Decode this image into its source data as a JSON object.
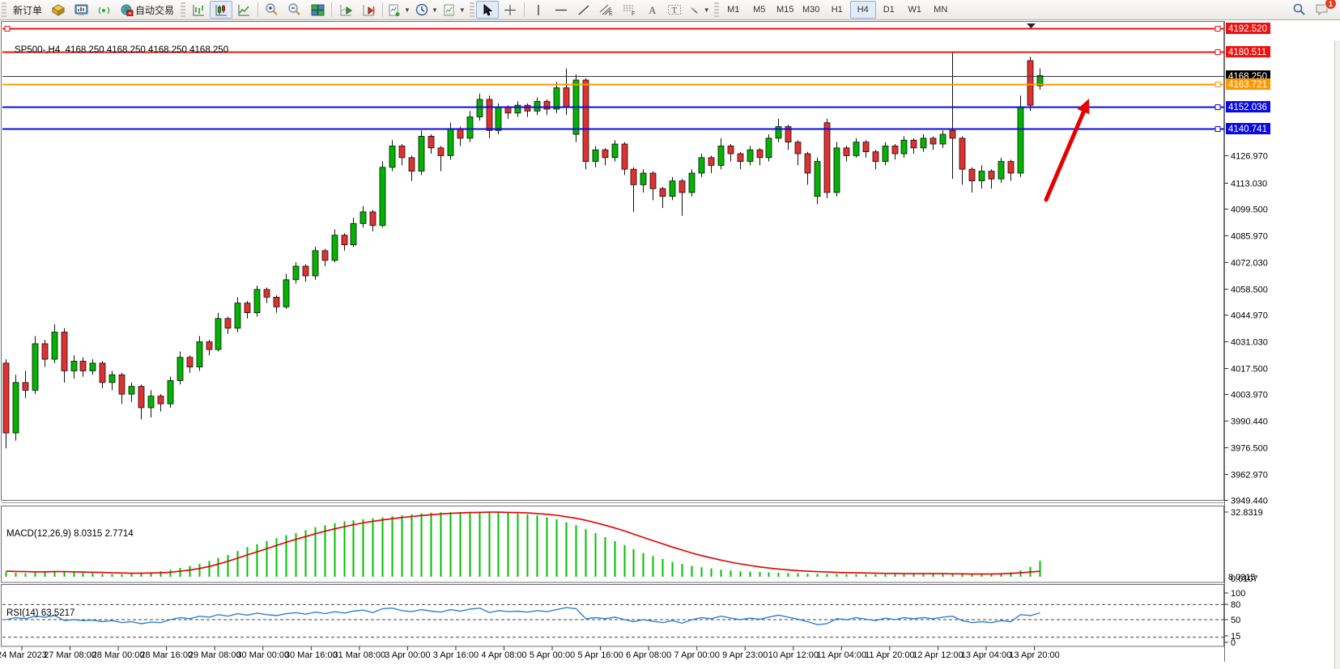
{
  "toolbar": {
    "new_order_label": "新订单",
    "auto_trading_label": "自动交易",
    "timeframes": [
      "M1",
      "M5",
      "M15",
      "M30",
      "H1",
      "H4",
      "D1",
      "W1",
      "MN"
    ],
    "active_timeframe": "H4",
    "notification_badge": "1",
    "icon_names": [
      "new-order",
      "package",
      "market-watch",
      "signal",
      "auto-trading",
      "bar-chart",
      "candlestick-chart",
      "line-chart",
      "zoom-in",
      "zoom-out",
      "tile-windows",
      "auto-scroll",
      "chart-shift",
      "indicators",
      "timeframes-clock",
      "templates",
      "cursor",
      "crosshair",
      "vertical-line",
      "horizontal-line",
      "trendline",
      "equidistant-channel",
      "fibonacci",
      "text",
      "text-label",
      "arrows",
      "search",
      "chat"
    ]
  },
  "chart": {
    "title": "SP500-,H4",
    "ohlc_text": "4168.250 4168.250 4168.250 4168.250",
    "price_axis": {
      "ticks": [
        "4126.970",
        "4113.030",
        "4099.500",
        "4085.970",
        "4072.030",
        "4058.500",
        "4044.970",
        "4031.030",
        "4017.500",
        "4003.970",
        "3990.440",
        "3976.500",
        "3962.970",
        "3949.440"
      ],
      "top_price": 4195.6,
      "bottom_price": 3949.44
    },
    "levels": [
      {
        "price": 4192.52,
        "label": "4192.520",
        "color": "#ee1111",
        "kind": "resistance-line"
      },
      {
        "price": 4180.511,
        "label": "4180.511",
        "color": "#ee1111",
        "kind": "resistance-line"
      },
      {
        "price": 4168.25,
        "label": "4168.250",
        "color": "#000000",
        "kind": "current-price"
      },
      {
        "price": 4163.721,
        "label": "4163.721",
        "color": "#ff9800",
        "kind": "pivot-line"
      },
      {
        "price": 4152.036,
        "label": "4152.036",
        "color": "#0b0bdf",
        "kind": "support-line"
      },
      {
        "price": 4140.741,
        "label": "4140.741",
        "color": "#0b0bdf",
        "kind": "support-line"
      }
    ],
    "time_axis": [
      "24 Mar 2023",
      "27 Mar 08:00",
      "28 Mar 00:00",
      "28 Mar 16:00",
      "29 Mar 08:00",
      "30 Mar 00:00",
      "30 Mar 16:00",
      "31 Mar 08:00",
      "3 Apr 00:00",
      "3 Apr 16:00",
      "4 Apr 08:00",
      "5 Apr 00:00",
      "5 Apr 16:00",
      "6 Apr 08:00",
      "7 Apr 00:00",
      "9 Apr 23:00",
      "10 Apr 12:00",
      "11 Apr 04:00",
      "11 Apr 20:00",
      "12 Apr 12:00",
      "13 Apr 04:00",
      "13 Apr 20:00"
    ]
  },
  "chart_data": {
    "type": "candlestick",
    "symbol_timeframe": "SP500-,H4",
    "candles": [
      [
        4020,
        4022,
        3976,
        3984
      ],
      [
        3984,
        4014,
        3980,
        4010
      ],
      [
        4010,
        4016,
        4002,
        4006
      ],
      [
        4006,
        4034,
        4004,
        4030
      ],
      [
        4030,
        4032,
        4018,
        4022
      ],
      [
        4022,
        4040,
        4020,
        4036
      ],
      [
        4036,
        4038,
        4010,
        4016
      ],
      [
        4016,
        4024,
        4012,
        4021
      ],
      [
        4021,
        4023,
        4013,
        4016
      ],
      [
        4016,
        4022,
        4014,
        4020
      ],
      [
        4020,
        4021,
        4007,
        4010
      ],
      [
        4010,
        4016,
        4006,
        4014
      ],
      [
        4014,
        4015,
        3999,
        4004
      ],
      [
        4004,
        4010,
        4000,
        4008
      ],
      [
        4008,
        4009,
        3991,
        3997
      ],
      [
        3997,
        4006,
        3992,
        4003
      ],
      [
        4003,
        4004,
        3995,
        3999
      ],
      [
        3999,
        4013,
        3997,
        4011
      ],
      [
        4011,
        4026,
        4009,
        4023
      ],
      [
        4023,
        4024,
        4015,
        4018
      ],
      [
        4018,
        4034,
        4016,
        4031
      ],
      [
        4031,
        4032,
        4024,
        4027
      ],
      [
        4027,
        4046,
        4026,
        4043
      ],
      [
        4043,
        4044,
        4035,
        4038
      ],
      [
        4038,
        4054,
        4036,
        4051
      ],
      [
        4051,
        4052,
        4043,
        4046
      ],
      [
        4046,
        4060,
        4044,
        4058
      ],
      [
        4058,
        4059,
        4051,
        4054
      ],
      [
        4054,
        4055,
        4046,
        4049
      ],
      [
        4049,
        4066,
        4048,
        4063
      ],
      [
        4063,
        4072,
        4061,
        4070
      ],
      [
        4070,
        4071,
        4062,
        4065
      ],
      [
        4065,
        4080,
        4063,
        4078
      ],
      [
        4078,
        4079,
        4070,
        4073
      ],
      [
        4073,
        4089,
        4072,
        4086
      ],
      [
        4086,
        4087,
        4078,
        4081
      ],
      [
        4081,
        4095,
        4080,
        4092
      ],
      [
        4092,
        4101,
        4090,
        4098
      ],
      [
        4098,
        4099,
        4088,
        4091
      ],
      [
        4091,
        4124,
        4090,
        4121
      ],
      [
        4121,
        4135,
        4119,
        4132
      ],
      [
        4132,
        4133,
        4122,
        4126
      ],
      [
        4126,
        4127,
        4114,
        4119
      ],
      [
        4119,
        4140,
        4117,
        4137
      ],
      [
        4137,
        4138,
        4128,
        4131
      ],
      [
        4131,
        4132,
        4119,
        4127
      ],
      [
        4127,
        4144,
        4125,
        4141
      ],
      [
        4141,
        4142,
        4132,
        4136
      ],
      [
        4136,
        4150,
        4134,
        4147
      ],
      [
        4147,
        4159,
        4145,
        4156
      ],
      [
        4156,
        4158,
        4136,
        4140
      ],
      [
        4140,
        4154,
        4138,
        4152
      ],
      [
        4152,
        4153,
        4146,
        4149
      ],
      [
        4149,
        4155,
        4147,
        4153
      ],
      [
        4153,
        4154,
        4147,
        4150
      ],
      [
        4150,
        4157,
        4148,
        4155
      ],
      [
        4155,
        4156,
        4148,
        4151
      ],
      [
        4151,
        4165,
        4149,
        4162
      ],
      [
        4162,
        4172,
        4148,
        4152
      ],
      [
        4138,
        4169,
        4134,
        4166
      ],
      [
        4166,
        4167,
        4120,
        4124
      ],
      [
        4124,
        4132,
        4121,
        4130
      ],
      [
        4130,
        4131,
        4122,
        4126
      ],
      [
        4126,
        4135,
        4124,
        4133
      ],
      [
        4133,
        4134,
        4117,
        4120
      ],
      [
        4120,
        4121,
        4098,
        4112
      ],
      [
        4112,
        4120,
        4108,
        4118
      ],
      [
        4118,
        4119,
        4104,
        4110
      ],
      [
        4110,
        4111,
        4100,
        4106
      ],
      [
        4106,
        4116,
        4104,
        4114
      ],
      [
        4114,
        4115,
        4096,
        4108
      ],
      [
        4108,
        4120,
        4106,
        4118
      ],
      [
        4118,
        4128,
        4116,
        4126
      ],
      [
        4126,
        4127,
        4118,
        4122
      ],
      [
        4122,
        4136,
        4120,
        4132
      ],
      [
        4132,
        4133,
        4124,
        4128
      ],
      [
        4128,
        4129,
        4120,
        4124
      ],
      [
        4124,
        4132,
        4122,
        4130
      ],
      [
        4130,
        4131,
        4122,
        4126
      ],
      [
        4126,
        4138,
        4124,
        4136
      ],
      [
        4136,
        4146,
        4134,
        4142
      ],
      [
        4142,
        4143,
        4130,
        4134
      ],
      [
        4134,
        4135,
        4122,
        4128
      ],
      [
        4128,
        4129,
        4112,
        4118
      ],
      [
        4106,
        4126,
        4102,
        4124
      ],
      [
        4144,
        4146,
        4105,
        4108
      ],
      [
        4108,
        4134,
        4106,
        4131
      ],
      [
        4131,
        4132,
        4124,
        4127
      ],
      [
        4127,
        4136,
        4126,
        4134
      ],
      [
        4134,
        4135,
        4126,
        4129
      ],
      [
        4129,
        4130,
        4120,
        4124
      ],
      [
        4124,
        4134,
        4122,
        4132
      ],
      [
        4132,
        4133,
        4125,
        4128
      ],
      [
        4128,
        4137,
        4126,
        4135
      ],
      [
        4135,
        4136,
        4128,
        4131
      ],
      [
        4131,
        4138,
        4129,
        4136
      ],
      [
        4136,
        4137,
        4130,
        4133
      ],
      [
        4133,
        4140,
        4131,
        4138
      ],
      [
        4140,
        4180,
        4115,
        4136
      ],
      [
        4136,
        4137,
        4112,
        4120
      ],
      [
        4120,
        4121,
        4108,
        4114
      ],
      [
        4114,
        4122,
        4110,
        4119
      ],
      [
        4119,
        4120,
        4110,
        4115
      ],
      [
        4115,
        4126,
        4113,
        4124
      ],
      [
        4124,
        4125,
        4114,
        4118
      ],
      [
        4118,
        4158,
        4116,
        4152
      ],
      [
        4176,
        4178,
        4150,
        4153
      ],
      [
        4163,
        4172,
        4161,
        4168.25
      ]
    ],
    "indicators": [
      {
        "name": "MACD",
        "label": "MACD(12,26,9) 8.0315 2.7714",
        "scale_max": "32.8319",
        "scale_bottom_values": [
          "8.0315",
          "0.0107"
        ],
        "histogram": [
          2.5,
          2,
          1.8,
          2.2,
          2.8,
          3,
          2.6,
          2.2,
          2,
          1.8,
          1.5,
          1.3,
          1.2,
          1.5,
          1.8,
          2.2,
          2.8,
          3.5,
          4.5,
          5.5,
          6.5,
          8,
          9.5,
          11,
          13,
          15,
          16.5,
          18,
          19.5,
          21,
          22,
          23.5,
          25,
          26,
          27,
          28,
          28.5,
          29,
          29.5,
          30,
          30.5,
          31,
          31.5,
          32,
          32.3,
          32.5,
          32.6,
          32.7,
          32.8,
          32.8,
          32.7,
          32.5,
          32.3,
          32,
          31.5,
          31,
          30,
          29,
          27.5,
          26,
          24,
          22,
          20,
          18,
          16,
          14,
          12,
          10.5,
          9,
          7.5,
          6.5,
          5.5,
          4.8,
          4.2,
          3.6,
          3.2,
          2.8,
          2.6,
          2.4,
          2.2,
          2,
          1.9,
          1.8,
          1.6,
          1.5,
          1.4,
          1.4,
          1.3,
          1.3,
          1.2,
          1.2,
          1.2,
          1.3,
          1.3,
          1.4,
          1.4,
          1.5,
          1.5,
          1.6,
          1.4,
          1.2,
          1.2,
          1.3,
          1.5,
          2.2,
          3.2,
          5,
          8.03
        ],
        "signal": [
          2.8,
          2.7,
          2.6,
          2.5,
          2.5,
          2.6,
          2.6,
          2.5,
          2.4,
          2.3,
          2.2,
          2.0,
          1.9,
          1.8,
          1.8,
          1.9,
          2.0,
          2.3,
          2.8,
          3.4,
          4.2,
          5.2,
          6.4,
          7.8,
          9.4,
          11,
          12.6,
          14.2,
          15.8,
          17.4,
          18.9,
          20.3,
          21.7,
          23,
          24.2,
          25.3,
          26.3,
          27.2,
          28,
          28.7,
          29.3,
          29.9,
          30.4,
          30.9,
          31.3,
          31.7,
          32,
          32.2,
          32.4,
          32.5,
          32.6,
          32.6,
          32.5,
          32.4,
          32.2,
          31.9,
          31.5,
          31,
          30.3,
          29.5,
          28.5,
          27.3,
          26,
          24.6,
          23.1,
          21.5,
          19.9,
          18.2,
          16.6,
          15,
          13.5,
          12,
          10.7,
          9.5,
          8.4,
          7.4,
          6.5,
          5.7,
          5,
          4.4,
          3.9,
          3.5,
          3.1,
          2.8,
          2.6,
          2.4,
          2.2,
          2.1,
          2,
          1.9,
          1.8,
          1.7,
          1.7,
          1.6,
          1.6,
          1.6,
          1.6,
          1.6,
          1.5,
          1.5,
          1.4,
          1.4,
          1.4,
          1.5,
          1.7,
          2,
          2.4,
          2.77
        ]
      },
      {
        "name": "RSI",
        "label": "RSI(14) 63.5217",
        "scale_labels": [
          "100",
          "80",
          "50",
          "15",
          "0"
        ],
        "dashed_levels": [
          80,
          50,
          15
        ],
        "values": [
          50,
          54,
          52,
          57,
          55,
          58,
          48,
          50,
          48,
          49,
          46,
          48,
          44,
          46,
          42,
          45,
          44,
          50,
          54,
          52,
          57,
          55,
          60,
          57,
          62,
          59,
          63,
          60,
          58,
          62,
          64,
          61,
          65,
          62,
          66,
          63,
          67,
          69,
          64,
          72,
          73,
          68,
          66,
          70,
          67,
          65,
          70,
          67,
          71,
          73,
          64,
          68,
          66,
          67,
          65,
          68,
          66,
          70,
          74,
          72,
          52,
          54,
          52,
          55,
          50,
          46,
          50,
          47,
          44,
          48,
          43,
          50,
          54,
          52,
          57,
          53,
          50,
          53,
          51,
          55,
          59,
          55,
          51,
          46,
          40,
          42,
          52,
          50,
          54,
          51,
          48,
          53,
          50,
          54,
          52,
          54,
          52,
          55,
          57,
          48,
          44,
          46,
          44,
          48,
          46,
          60,
          58,
          63.5
        ]
      }
    ]
  },
  "annotation": {
    "arrow_color": "#e60000"
  },
  "colors": {
    "bull": "#00b400",
    "bear": "#e03030",
    "macd_histogram": "#00c000",
    "macd_signal": "#e00000",
    "rsi_line": "#2f80d0"
  }
}
